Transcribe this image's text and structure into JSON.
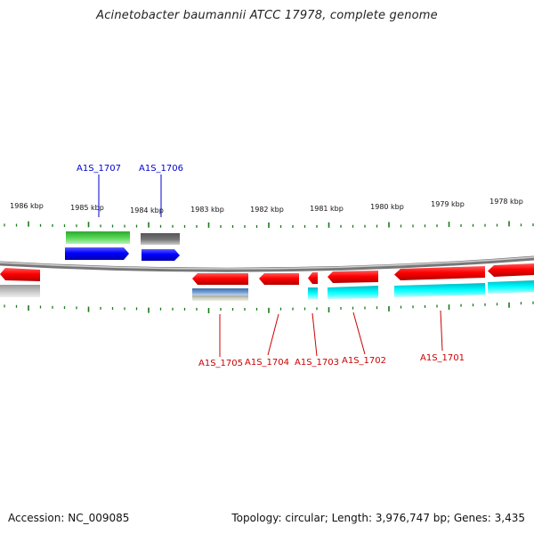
{
  "title": "Acinetobacter baumannii ATCC 17978, complete genome",
  "footer": {
    "accession": "Accession: NC_009085",
    "summary": "Topology: circular; Length: 3,976,747 bp; Genes: 3,435"
  },
  "scale": {
    "unit": "kbp",
    "labels": [
      "1986 kbp",
      "1985 kbp",
      "1984 kbp",
      "1983 kbp",
      "1982 kbp",
      "1981 kbp",
      "1980 kbp",
      "1979 kbp",
      "1978 kbp"
    ]
  },
  "colors": {
    "forward_label": "#0000cc",
    "reverse_label": "#cc0000",
    "backbone": "#888888",
    "tick": "#1a7a1a"
  },
  "forward_genes": [
    {
      "name": "A1S_1707"
    },
    {
      "name": "A1S_1706"
    }
  ],
  "reverse_genes": [
    {
      "name": "A1S_1705"
    },
    {
      "name": "A1S_1704"
    },
    {
      "name": "A1S_1703"
    },
    {
      "name": "A1S_1702"
    },
    {
      "name": "A1S_1701"
    }
  ]
}
